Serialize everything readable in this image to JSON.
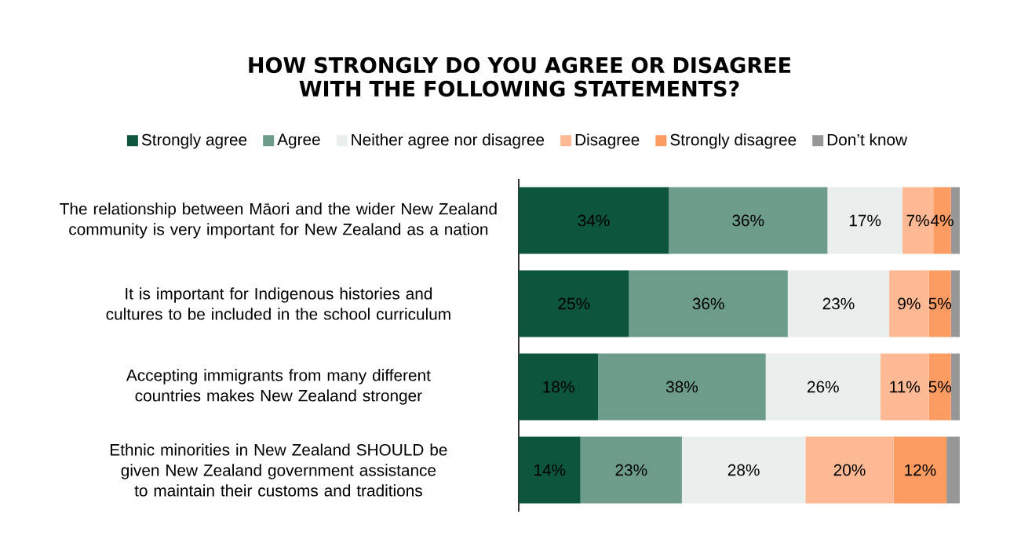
{
  "chart_data": {
    "type": "bar",
    "orientation": "horizontal",
    "stacked": true,
    "title": "HOW STRONGLY DO YOU AGREE OR DISAGREE WITH THE FOLLOWING STATEMENTS?",
    "categories": [
      "The relationship between Māori and the wider New Zealand community is very important for New Zealand as a nation",
      "It is important for Indigenous histories and cultures to be included in the school curriculum",
      "Accepting immigrants from many different countries makes New Zealand stronger",
      "Ethnic minorities in New Zealand SHOULD be given New Zealand government assistance to maintain their customs and traditions"
    ],
    "series": [
      {
        "name": "Strongly agree",
        "color": "#0e553d",
        "values": [
          34,
          25,
          18,
          14
        ],
        "value_labels": [
          "34%",
          "25%",
          "18%",
          "14%"
        ]
      },
      {
        "name": "Agree",
        "color": "#6e9c8b",
        "values": [
          36,
          36,
          38,
          23
        ],
        "value_labels": [
          "36%",
          "36%",
          "38%",
          "23%"
        ]
      },
      {
        "name": "Neither agree nor disagree",
        "color": "#eaeeec",
        "values": [
          17,
          23,
          26,
          28
        ],
        "value_labels": [
          "17%",
          "23%",
          "26%",
          "28%"
        ]
      },
      {
        "name": "Disagree",
        "color": "#fdb994",
        "values": [
          7,
          9,
          11,
          20
        ],
        "value_labels": [
          "7%",
          "9%",
          "11%",
          "20%"
        ]
      },
      {
        "name": "Strongly disagree",
        "color": "#fc9c63",
        "values": [
          4,
          5,
          5,
          12
        ],
        "value_labels": [
          "4%",
          "5%",
          "5%",
          "12%"
        ]
      },
      {
        "name": "Don’t know",
        "color": "#979797",
        "values": [
          2,
          2,
          2,
          3
        ],
        "value_labels": [
          null,
          null,
          null,
          null
        ]
      }
    ],
    "legend": "top"
  }
}
